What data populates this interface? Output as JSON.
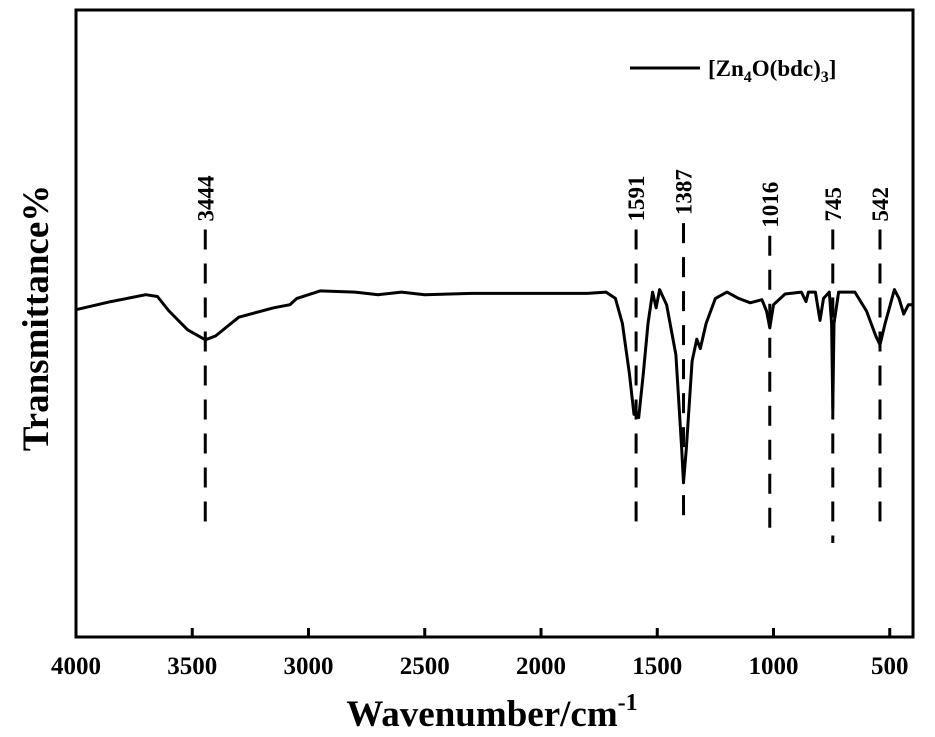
{
  "chart_data": {
    "type": "line",
    "title": "",
    "xlabel": "Wavenumber/cm",
    "xlabel_sup": "-1",
    "ylabel": "Transmittance%",
    "xlim": [
      4000,
      400
    ],
    "x_reversed": true,
    "ylim": [
      0,
      100
    ],
    "y_ticks_shown": false,
    "grid": false,
    "legend_position": "top-right",
    "x_ticks": [
      4000,
      3500,
      3000,
      2500,
      2000,
      1500,
      1000,
      500
    ],
    "x_tick_labels": [
      "4000",
      "3500",
      "3000",
      "2500",
      "2000",
      "1500",
      "1000",
      "500"
    ],
    "legend": {
      "prefix": "[Zn",
      "sub1": "4",
      "mid": "O(bdc)",
      "sub2": "3",
      "suffix": "]"
    },
    "series": [
      {
        "color": "#000000",
        "points": [
          [
            4000,
            52.2
          ],
          [
            3850,
            53.5
          ],
          [
            3700,
            54.6
          ],
          [
            3650,
            54.3
          ],
          [
            3600,
            52
          ],
          [
            3520,
            49
          ],
          [
            3444,
            47.4
          ],
          [
            3400,
            48
          ],
          [
            3300,
            51
          ],
          [
            3150,
            52.5
          ],
          [
            3080,
            53
          ],
          [
            3050,
            54
          ],
          [
            2950,
            55.2
          ],
          [
            2800,
            55
          ],
          [
            2700,
            54.6
          ],
          [
            2600,
            55
          ],
          [
            2500,
            54.6
          ],
          [
            2300,
            54.8
          ],
          [
            2000,
            54.8
          ],
          [
            1800,
            54.8
          ],
          [
            1720,
            55
          ],
          [
            1680,
            54
          ],
          [
            1650,
            50
          ],
          [
            1620,
            42
          ],
          [
            1600,
            35.5
          ],
          [
            1591,
            36
          ],
          [
            1580,
            35
          ],
          [
            1560,
            42
          ],
          [
            1540,
            50
          ],
          [
            1520,
            55
          ],
          [
            1505,
            52.5
          ],
          [
            1490,
            55.4
          ],
          [
            1460,
            53
          ],
          [
            1420,
            45
          ],
          [
            1395,
            30
          ],
          [
            1387,
            24.6
          ],
          [
            1375,
            30
          ],
          [
            1350,
            44
          ],
          [
            1330,
            47.5
          ],
          [
            1315,
            46
          ],
          [
            1290,
            50
          ],
          [
            1250,
            54
          ],
          [
            1200,
            55
          ],
          [
            1150,
            54
          ],
          [
            1100,
            53.3
          ],
          [
            1050,
            53.8
          ],
          [
            1030,
            52
          ],
          [
            1016,
            49.3
          ],
          [
            1000,
            53
          ],
          [
            950,
            54.7
          ],
          [
            880,
            55
          ],
          [
            860,
            53.5
          ],
          [
            850,
            55
          ],
          [
            820,
            55
          ],
          [
            800,
            50.5
          ],
          [
            785,
            54
          ],
          [
            760,
            55
          ],
          [
            750,
            50
          ],
          [
            745,
            36.5
          ],
          [
            740,
            50
          ],
          [
            720,
            55
          ],
          [
            650,
            55
          ],
          [
            600,
            52
          ],
          [
            560,
            48
          ],
          [
            542,
            46.6
          ],
          [
            520,
            50
          ],
          [
            480,
            55.4
          ],
          [
            460,
            54
          ],
          [
            440,
            51.5
          ],
          [
            420,
            53
          ],
          [
            400,
            53
          ]
        ]
      }
    ],
    "annotations": [
      {
        "label": "3444",
        "x": 3444,
        "line_top": 65,
        "line_bottom": 17
      },
      {
        "label": "1591",
        "x": 1591,
        "line_top": 65,
        "line_bottom": 17
      },
      {
        "label": "1387",
        "x": 1387,
        "line_top": 66,
        "line_bottom": 18
      },
      {
        "label": "1016",
        "x": 1016,
        "line_top": 64,
        "line_bottom": 17
      },
      {
        "label": "745",
        "x": 745,
        "line_top": 65,
        "line_bottom": 15
      },
      {
        "label": "542",
        "x": 542,
        "line_top": 65,
        "line_bottom": 17
      }
    ]
  }
}
